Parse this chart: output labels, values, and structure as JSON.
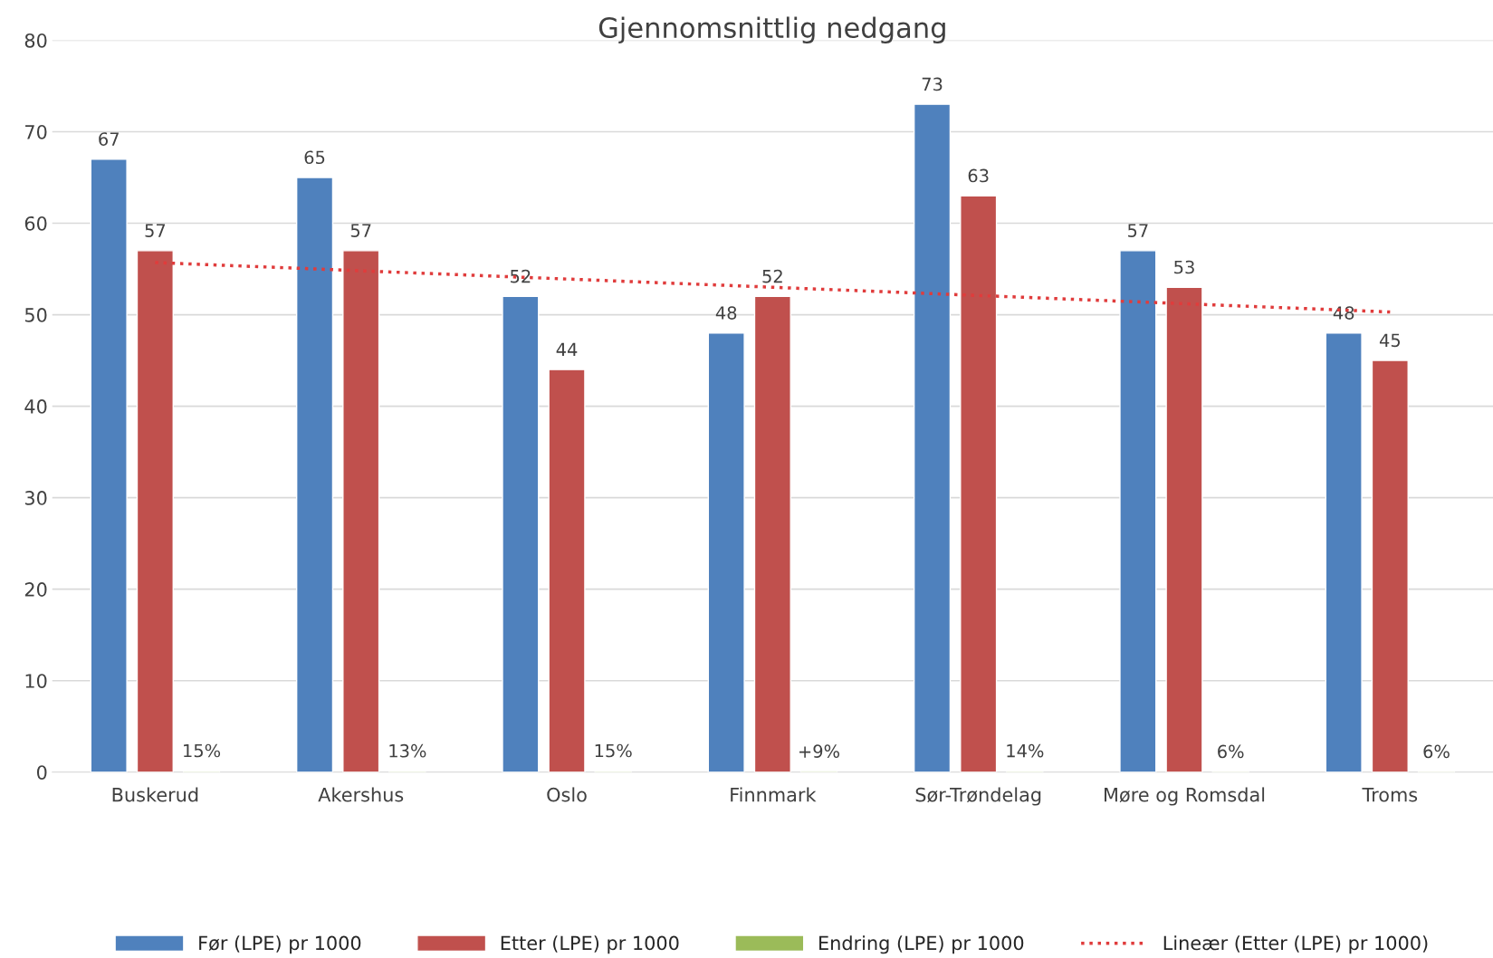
{
  "chart_data": {
    "type": "bar",
    "title": "Gjennomsnittlig nedgang",
    "categories": [
      "Buskerud",
      "Akershus",
      "Oslo",
      "Finnmark",
      "Sør-Trøndelag",
      "Møre og Romsdal",
      "Troms"
    ],
    "series": [
      {
        "name": "Før (LPE) pr 1000",
        "color": "#4f81bd",
        "values": [
          67,
          65,
          52,
          48,
          73,
          57,
          48
        ],
        "value_labels": [
          "67",
          "65",
          "52",
          "48",
          "73",
          "57",
          "48"
        ]
      },
      {
        "name": "Etter (LPE) pr 1000",
        "color": "#c0504d",
        "values": [
          57,
          57,
          44,
          52,
          63,
          53,
          45
        ],
        "value_labels": [
          "57",
          "57",
          "44",
          "52",
          "63",
          "53",
          "45"
        ]
      },
      {
        "name": "Endring (LPE) pr 1000",
        "color": "#9bbb59",
        "values": [
          0.15,
          0.13,
          0.15,
          0.09,
          0.14,
          0.06,
          0.06
        ],
        "value_labels": [
          "15%",
          "13%",
          "15%",
          "+9%",
          "14%",
          "6%",
          "6%"
        ]
      },
      {
        "name": "Lineær (Etter (LPE) pr 1000)",
        "type": "line",
        "line_style": "dotted",
        "color": "#e03c3c",
        "values": [
          55.7,
          54.8,
          53.9,
          53.0,
          52.1,
          51.2,
          50.3
        ]
      }
    ],
    "ylim": [
      0,
      80
    ],
    "yticks": [
      0,
      10,
      20,
      30,
      40,
      50,
      60,
      70,
      80
    ],
    "grid": "y",
    "legend": "bottom"
  }
}
